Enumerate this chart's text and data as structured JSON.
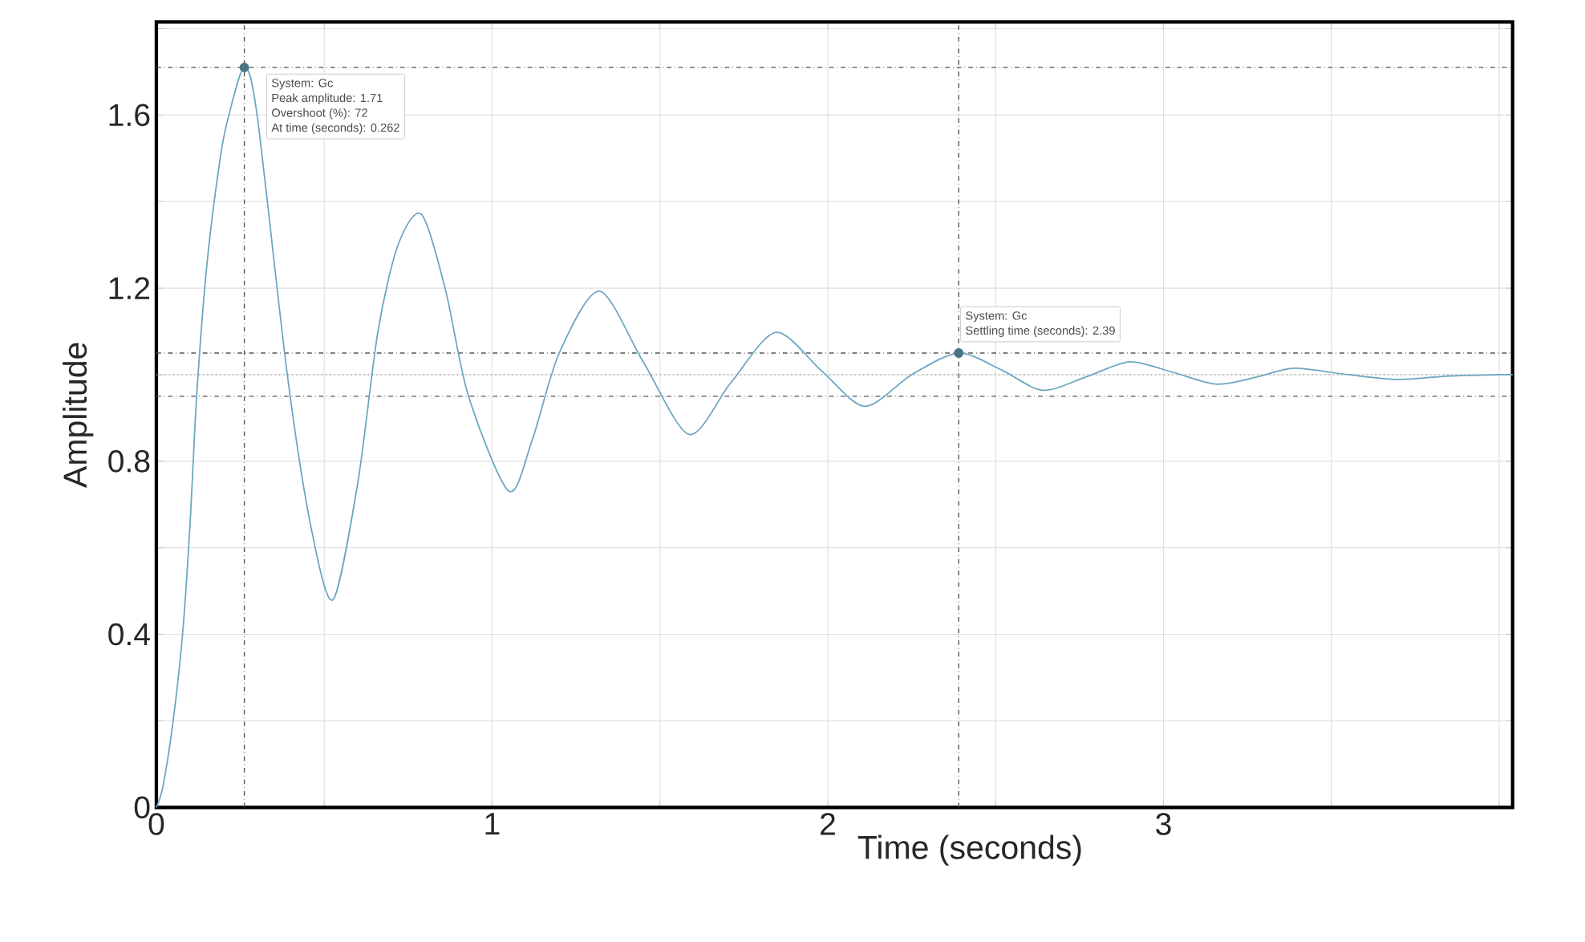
{
  "chart_data": {
    "type": "line",
    "xlabel": "Time (seconds)",
    "ylabel": "Amplitude",
    "xlim": [
      0,
      4.04
    ],
    "ylim": [
      0,
      1.815
    ],
    "xticks": [
      0,
      {
        "value": 0.5,
        "label": null
      },
      1,
      {
        "value": 1.5,
        "label": null
      },
      2,
      {
        "value": 2.5,
        "label": null
      },
      3,
      {
        "value": 3.5,
        "label": null
      },
      {
        "value": 4,
        "label": null
      }
    ],
    "yticks": [
      0,
      {
        "value": 0.2,
        "label": null
      },
      0.4,
      {
        "value": 0.6,
        "label": null
      },
      0.8,
      {
        "value": 1.0,
        "label": null
      },
      1.2,
      {
        "value": 1.4,
        "label": null
      },
      1.6,
      {
        "value": 1.8,
        "label": null
      }
    ],
    "grid": true,
    "series": [
      {
        "color": "#6aa6c0",
        "x": [
          0,
          0.02,
          0.05,
          0.078,
          0.1,
          0.12,
          0.15,
          0.19,
          0.216,
          0.262,
          0.3,
          0.39,
          0.46,
          0.526,
          0.6,
          0.66,
          0.72,
          0.789,
          0.86,
          0.93,
          1.05,
          1.12,
          1.2,
          1.32,
          1.45,
          1.587,
          1.71,
          1.845,
          1.98,
          2.11,
          2.25,
          2.39,
          2.52,
          2.64,
          2.77,
          2.9,
          3.03,
          3.16,
          3.28,
          3.39,
          3.55,
          3.7,
          3.85,
          4.0,
          4.04
        ],
        "values": [
          0,
          0.05,
          0.2,
          0.4,
          0.65,
          0.95,
          1.25,
          1.5,
          1.6,
          1.71,
          1.6,
          1.0,
          0.65,
          0.48,
          0.75,
          1.1,
          1.3,
          1.371,
          1.2,
          0.95,
          0.731,
          0.85,
          1.05,
          1.193,
          1.03,
          0.862,
          0.98,
          1.098,
          1.01,
          0.927,
          1.0,
          1.05,
          1.01,
          0.964,
          0.995,
          1.03,
          1.005,
          0.978,
          0.995,
          1.015,
          1.0,
          0.989,
          0.997,
          1.0,
          1.0
        ]
      }
    ],
    "ref_lines": [
      {
        "axis": "x",
        "value": 0.262,
        "line_style": "dashdot",
        "color": "#555555"
      },
      {
        "axis": "x",
        "value": 2.39,
        "line_style": "dashdot",
        "color": "#555555"
      },
      {
        "axis": "y",
        "value": 1.71,
        "line_style": "dashdot",
        "color": "#555555"
      },
      {
        "axis": "y",
        "value": 1.05,
        "line_style": "dashdot",
        "color": "#555555"
      },
      {
        "axis": "y",
        "value": 0.95,
        "line_style": "dashdot",
        "color": "#555555"
      },
      {
        "axis": "y",
        "value": 1.0,
        "line_style": "dotted",
        "color": "#aaaaaa"
      }
    ],
    "annotations": [
      {
        "text": "System: Gc",
        "x": 0.262,
        "y": 1.71
      },
      "Peak amplitude: 1.71",
      "Overshoot (%): 72",
      "At time (seconds): 0.262",
      {
        "text": "System: Gc",
        "x": 2.39,
        "y": 1.05
      },
      "Settling time (seconds): 2.39"
    ]
  }
}
